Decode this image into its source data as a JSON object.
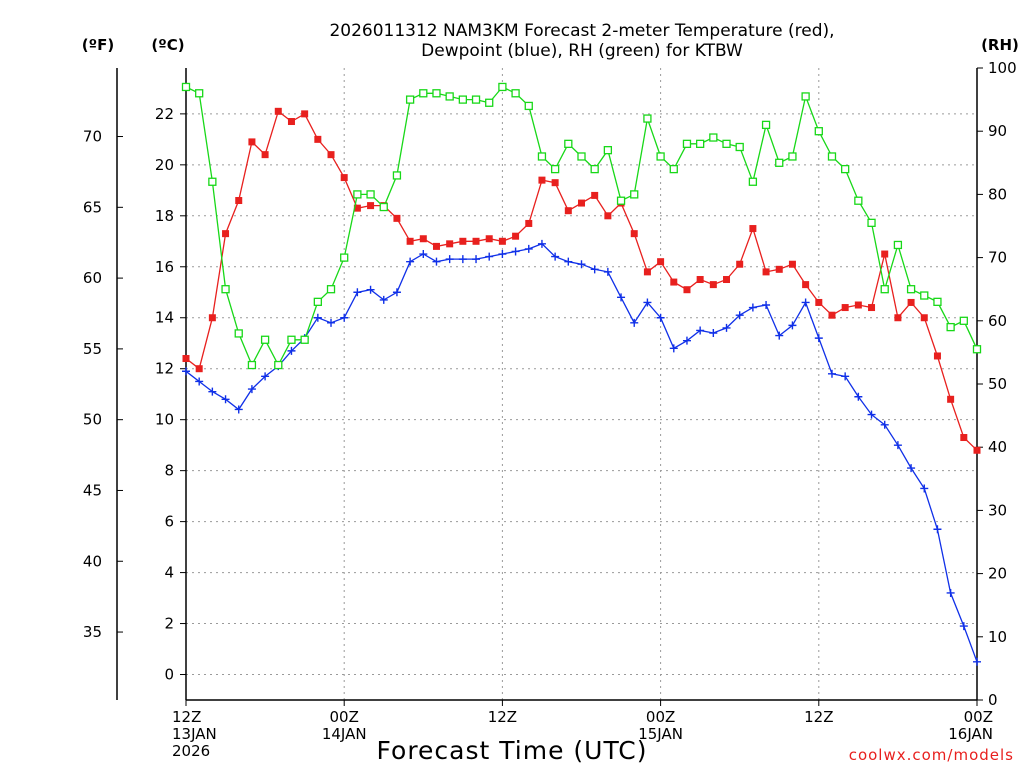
{
  "chart_data": {
    "type": "line",
    "title": [
      "2026011312 NAM3KM Forecast 2-meter Temperature (red),",
      "Dewpoint (blue), RH (green) for KTBW"
    ],
    "xlabel": "Forecast Time (UTC)",
    "credit": "coolwx.com/models",
    "units": {
      "fahrenheit": "(ºF)",
      "celsius": "(ºC)",
      "rh": "(RH)"
    },
    "x_hours": [
      0,
      1,
      2,
      3,
      4,
      5,
      6,
      7,
      8,
      9,
      10,
      11,
      12,
      13,
      14,
      15,
      16,
      17,
      18,
      19,
      20,
      21,
      22,
      23,
      24,
      25,
      26,
      27,
      28,
      29,
      30,
      31,
      32,
      33,
      34,
      35,
      36,
      37,
      38,
      39,
      40,
      41,
      42,
      43,
      44,
      45,
      46,
      47,
      48,
      49,
      50,
      51,
      52,
      53,
      54,
      55,
      56,
      57,
      58,
      59,
      60
    ],
    "x_ticks": [
      {
        "hour": 0,
        "lines": [
          "12Z",
          "13JAN",
          "2026"
        ]
      },
      {
        "hour": 12,
        "lines": [
          "00Z",
          "14JAN"
        ]
      },
      {
        "hour": 24,
        "lines": [
          "12Z"
        ]
      },
      {
        "hour": 36,
        "lines": [
          "00Z",
          "15JAN"
        ]
      },
      {
        "hour": 48,
        "lines": [
          "12Z"
        ]
      },
      {
        "hour": 60,
        "lines": [
          "00Z",
          "16JAN"
        ]
      }
    ],
    "xlim": [
      0,
      60
    ],
    "ylim_c": [
      -1.0,
      23.8
    ],
    "ylim_f": [
      30.2,
      74.84
    ],
    "ylim_rh": [
      0,
      100
    ],
    "yticks_c": [
      0,
      2,
      4,
      6,
      8,
      10,
      12,
      14,
      16,
      18,
      20,
      22
    ],
    "yticks_f": [
      35,
      40,
      45,
      50,
      55,
      60,
      65,
      70
    ],
    "yticks_rh": [
      0,
      10,
      20,
      30,
      40,
      50,
      60,
      70,
      80,
      90,
      100
    ],
    "grid": true,
    "series": [
      {
        "name": "2-meter Temperature",
        "unit": "C",
        "color": "#e8201e",
        "marker": "filled-square",
        "values": [
          12.4,
          12.0,
          14.0,
          17.3,
          18.6,
          20.9,
          20.4,
          22.1,
          21.7,
          22.0,
          21.0,
          20.4,
          19.5,
          18.3,
          18.4,
          18.4,
          17.9,
          17.0,
          17.1,
          16.8,
          16.9,
          17.0,
          17.0,
          17.1,
          17.0,
          17.2,
          17.7,
          19.4,
          19.3,
          18.2,
          18.5,
          18.8,
          18.0,
          18.5,
          17.3,
          15.8,
          16.2,
          15.4,
          15.1,
          15.5,
          15.3,
          15.5,
          16.1,
          17.5,
          15.8,
          15.9,
          16.1,
          15.3,
          14.6,
          14.1,
          14.4,
          14.5,
          14.4,
          16.5,
          14.0,
          14.6,
          14.0,
          12.5,
          10.8,
          9.3,
          8.8
        ]
      },
      {
        "name": "Dewpoint",
        "unit": "C",
        "color": "#1030e8",
        "marker": "plus",
        "values": [
          11.9,
          11.5,
          11.1,
          10.8,
          10.4,
          11.2,
          11.7,
          12.1,
          12.7,
          13.2,
          14.0,
          13.8,
          14.0,
          15.0,
          15.1,
          14.7,
          15.0,
          16.2,
          16.5,
          16.2,
          16.3,
          16.3,
          16.3,
          16.4,
          16.5,
          16.6,
          16.7,
          16.9,
          16.4,
          16.2,
          16.1,
          15.9,
          15.8,
          14.8,
          13.8,
          14.6,
          14.0,
          12.8,
          13.1,
          13.5,
          13.4,
          13.6,
          14.1,
          14.4,
          14.5,
          13.3,
          13.7,
          14.6,
          13.2,
          11.8,
          11.7,
          10.9,
          10.2,
          9.8,
          9.0,
          8.1,
          7.3,
          5.7,
          3.2,
          1.9,
          0.5
        ]
      },
      {
        "name": "RH",
        "unit": "%",
        "color": "#18d818",
        "marker": "open-square",
        "values": [
          97,
          96,
          82,
          65,
          58,
          53,
          57,
          53,
          57,
          57,
          63,
          65,
          70,
          80,
          80,
          78,
          83,
          95,
          96,
          96,
          95.5,
          95,
          95,
          94.5,
          97,
          96,
          94,
          86,
          84,
          88,
          86,
          84,
          87,
          79,
          80,
          92,
          86,
          84,
          88,
          88,
          89,
          88,
          87.5,
          82,
          91,
          85,
          86,
          95.5,
          90,
          86,
          84,
          79,
          75.5,
          65,
          72,
          65,
          64,
          63,
          59,
          60,
          55.5
        ]
      }
    ]
  }
}
